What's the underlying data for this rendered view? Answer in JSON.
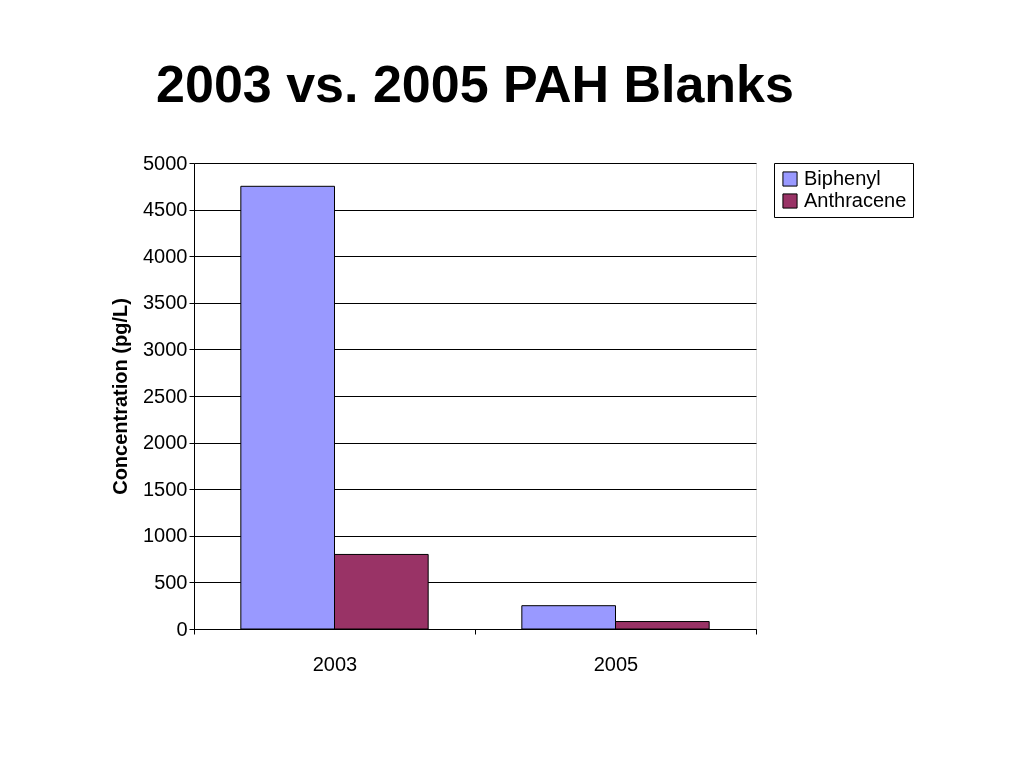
{
  "chart_data": {
    "type": "bar",
    "title": "2003 vs. 2005 PAH Blanks",
    "ylabel": "Concentration (pg/L)",
    "categories": [
      "2003",
      "2005"
    ],
    "series": [
      {
        "name": "Biphenyl",
        "color": "#9999ff",
        "values": [
          4750,
          250
        ]
      },
      {
        "name": "Anthracene",
        "color": "#993366",
        "values": [
          800,
          80
        ]
      }
    ],
    "ylim": [
      0,
      5000
    ],
    "yticks": [
      0,
      500,
      1000,
      1500,
      2000,
      2500,
      3000,
      3500,
      4000,
      4500,
      5000
    ],
    "grid": "y",
    "legend": "right"
  }
}
